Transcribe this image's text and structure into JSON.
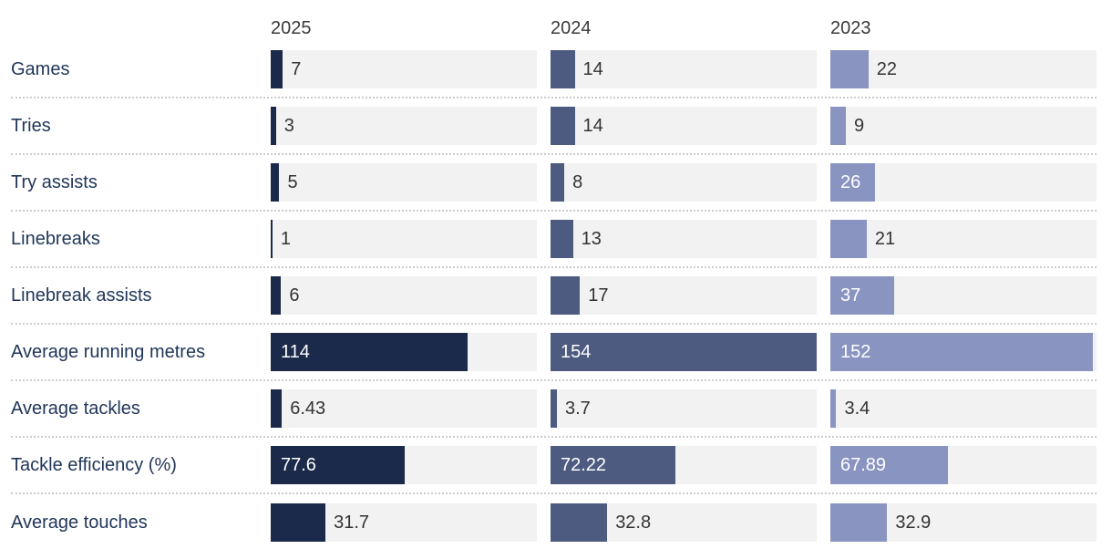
{
  "chart_data": {
    "type": "bar",
    "orientation": "horizontal",
    "categories": [
      "Games",
      "Tries",
      "Try assists",
      "Linebreaks",
      "Linebreak assists",
      "Average running metres",
      "Average tackles",
      "Tackle efficiency (%)",
      "Average touches"
    ],
    "series": [
      {
        "name": "2025",
        "color": "#1b2a4a",
        "values": [
          7,
          3,
          5,
          1,
          6,
          114,
          6.43,
          77.6,
          31.7
        ]
      },
      {
        "name": "2024",
        "color": "#4d5b80",
        "values": [
          14,
          14,
          8,
          13,
          17,
          154,
          3.7,
          72.22,
          32.8
        ]
      },
      {
        "name": "2023",
        "color": "#8a94c1",
        "values": [
          22,
          9,
          26,
          21,
          37,
          152,
          3.4,
          67.89,
          32.9
        ]
      }
    ],
    "xmax": 154,
    "value_labels": true,
    "legend_position": "column-headers",
    "grid": false
  },
  "colors": {
    "track": "#f2f2f2",
    "row_label": "#1f3558",
    "header_text": "#3a3a3a",
    "value_outside": "#333333",
    "value_inside": "#ffffff",
    "separator": "#cccccc"
  }
}
